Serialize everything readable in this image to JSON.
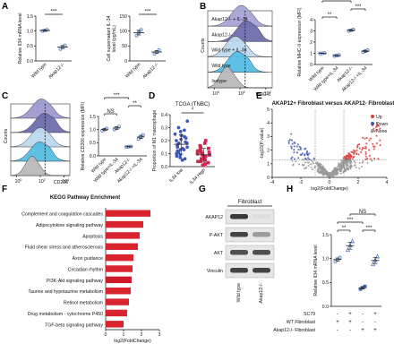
{
  "panel_labels": [
    "A",
    "B",
    "C",
    "D",
    "E",
    "F",
    "G",
    "H"
  ],
  "chart_data": [
    {
      "panel": "A1",
      "type": "scatter",
      "ylabel": "Relative Il34 mRNA level",
      "categories": [
        "Wild type",
        "Akap12-/-"
      ],
      "ylim": [
        0.0,
        1.5
      ],
      "yticks": [
        "0.0",
        "0.5",
        "1.0",
        "1.5"
      ],
      "points": [
        [
          1.0,
          1.02,
          1.04
        ],
        [
          0.4,
          0.47,
          0.52
        ]
      ],
      "color": "#3f6bb5",
      "significance": "***"
    },
    {
      "panel": "A2",
      "type": "scatter",
      "ylabel": "Cell supernatant IL-34 level (pg/mL)",
      "categories": [
        "Wild type",
        "Akap12-/-"
      ],
      "ylim": [
        0,
        150
      ],
      "yticks": [
        "0",
        "50",
        "100",
        "150"
      ],
      "points": [
        [
          85,
          95,
          104
        ],
        [
          24,
          30,
          36
        ]
      ],
      "color": "#3f6bb5",
      "significance": "***"
    },
    {
      "panel": "B1",
      "type": "area",
      "xlabel": "MHC-II",
      "ylabel": "Counts",
      "xticks": [
        "10^0",
        "10^2",
        "10^4"
      ],
      "tracks": [
        {
          "name": "Akap12-/- + IL-34",
          "color": "#a7a4d6",
          "peak": 0.52,
          "width": 0.15
        },
        {
          "name": "Akap12-/-",
          "color": "#6f6dad",
          "peak": 0.6,
          "width": 0.15
        },
        {
          "name": "Wild type + IL-34",
          "color": "#bdd8ee",
          "peak": 0.43,
          "width": 0.15
        },
        {
          "name": "Wild type",
          "color": "#54bde4",
          "peak": 0.46,
          "width": 0.15
        },
        {
          "name": "Isotype",
          "color": "#b9b9b9",
          "peak": 0.3,
          "width": 0.11
        }
      ]
    },
    {
      "panel": "B2",
      "type": "scatter",
      "ylabel": "Relative MHC-II expression (MFI)",
      "categories": [
        "Wild type",
        "Wild type+IL-34",
        "Akap12-/-",
        "Akap12-/-+IL-34"
      ],
      "ylim": [
        0,
        4
      ],
      "yticks": [
        "0",
        "1",
        "2",
        "3",
        "4"
      ],
      "points": [
        [
          0.98,
          1.0,
          1.02
        ],
        [
          0.76,
          0.8,
          0.84
        ],
        [
          3.0,
          3.05,
          3.12
        ],
        [
          1.1,
          1.2,
          1.28
        ]
      ],
      "color": "#3f6bb5",
      "brackets": [
        {
          "from": 0,
          "to": 1,
          "label": "**",
          "level": 0
        },
        {
          "from": 2,
          "to": 3,
          "label": "***",
          "level": 1
        },
        {
          "from": 0,
          "to": 2,
          "label": "***",
          "level": 2
        }
      ]
    },
    {
      "panel": "C1",
      "type": "area",
      "xlabel": "CD206",
      "ylabel": "Counts",
      "xticks": [
        "10^0",
        "10^2",
        "10^4"
      ],
      "tracks": [
        {
          "name": "Akap12-/- + IL-34",
          "color": "#9d9ad0",
          "peak": 0.52,
          "width": 0.16
        },
        {
          "name": "Akap12-/-",
          "color": "#6f6dad",
          "peak": 0.57,
          "width": 0.16
        },
        {
          "name": "Wild type + IL-34",
          "color": "#bdd8ee",
          "peak": 0.5,
          "width": 0.16
        },
        {
          "name": "Wild type",
          "color": "#54bde4",
          "peak": 0.49,
          "width": 0.16
        },
        {
          "name": "Isotype",
          "color": "#b9b9b9",
          "peak": 0.36,
          "width": 0.11
        }
      ]
    },
    {
      "panel": "C2",
      "type": "scatter",
      "ylabel": "Relative CD206 expression (MFI)",
      "categories": [
        "Wild type",
        "Wild type+IL-34",
        "Akap12-/-",
        "Akap12-/-+IL-34"
      ],
      "ylim": [
        0.0,
        1.5
      ],
      "yticks": [
        "0.0",
        "0.5",
        "1.0",
        "1.5"
      ],
      "points": [
        [
          0.96,
          1.0,
          1.04
        ],
        [
          1.0,
          1.06,
          1.12
        ],
        [
          0.34,
          0.35,
          0.36
        ],
        [
          0.64,
          0.72,
          0.8
        ]
      ],
      "color": "#3f6bb5",
      "brackets": [
        {
          "from": 0,
          "to": 1,
          "label": "NS",
          "level": 0
        },
        {
          "from": 2,
          "to": 3,
          "label": "**",
          "level": 1
        },
        {
          "from": 0,
          "to": 2,
          "label": "***",
          "level": 2
        }
      ]
    },
    {
      "panel": "D",
      "type": "scatter",
      "title": "TCGA (TNBC)",
      "ylabel": "Proportion of M1 macrophage",
      "categories": [
        "IL34 low",
        "IL34 High"
      ],
      "ylim": [
        0.0,
        0.4
      ],
      "yticks": [
        "0.0",
        "0.1",
        "0.2",
        "0.3",
        "0.4"
      ],
      "points": [
        [
          0.25,
          0.22,
          0.18,
          0.15,
          0.13,
          0.2,
          0.28,
          0.1,
          0.08,
          0.05,
          0.12,
          0.17,
          0.23,
          0.3,
          0.35,
          0.14,
          0.19,
          0.11,
          0.16,
          0.21,
          0.27,
          0.09,
          0.06,
          0.13,
          0.18,
          0.24,
          0.07,
          0.15
        ],
        [
          0.1,
          0.06,
          0.04,
          0.12,
          0.02,
          0.08,
          0.15,
          0.18,
          0.05,
          0.03,
          0.09,
          0.11,
          0.14,
          0.2,
          0.07,
          0.01,
          0.13,
          0.06,
          0.1,
          0.16,
          0.04,
          0.09,
          0.12,
          0.08,
          0.02,
          0.11
        ]
      ],
      "colors": [
        "#3f57b5",
        "#d1264e"
      ],
      "significance": "*"
    },
    {
      "panel": "E",
      "type": "scatter",
      "title": "AKAP12+ Fibroblast versus AKAP12- Fibroblast",
      "xlabel": "log2(FoldChange)",
      "ylabel": "-log10(P value)",
      "xlim": [
        -4,
        4
      ],
      "ylim": [
        0,
        5
      ],
      "xticks": [
        "-4",
        "-2",
        "0",
        "2",
        "4"
      ],
      "yticks": [
        "0",
        "1",
        "2",
        "3",
        "4",
        "5"
      ],
      "legend": [
        {
          "label": "Up",
          "color": "#e23b3b"
        },
        {
          "label": "Down",
          "color": "#3f57b5"
        },
        {
          "label": "None",
          "color": "#999999"
        }
      ]
    },
    {
      "panel": "F",
      "type": "bar",
      "title": "KEGG Pathway Enrichment",
      "xlabel": "log2(FoldChange)",
      "xlim": [
        0,
        3
      ],
      "xticks": [
        "0",
        "1",
        "2",
        "3"
      ],
      "categories": [
        "Complement and coagulation cascades",
        "Adipocytokine signaling pathway",
        "Apoptosis",
        "Fluid shear stress and atherosclerosis",
        "Axon guidance",
        "Circadian rhythm",
        "PI3K-Akt signaling pathway",
        "Taurine and hypotaurine metabolism",
        "Retinol metabolism",
        "Drug metabolism - cytochrome P450",
        "TGF-beta signaling pathway"
      ],
      "values": [
        2.5,
        2.1,
        1.9,
        1.8,
        1.55,
        1.5,
        1.45,
        1.4,
        1.3,
        1.2,
        1.0
      ],
      "highlight_index": 6,
      "bar_color": "#d9232e",
      "highlight_color": "#cc1a2a"
    },
    {
      "panel": "G",
      "type": "table",
      "header": "Fibroblast",
      "rows": [
        "AKAP12",
        "P-AKT",
        "AKT",
        "Vinculin"
      ],
      "columns": [
        "Wild type",
        "Akap12-/-"
      ],
      "band_intensity": [
        [
          0.9,
          0.15
        ],
        [
          0.85,
          0.45
        ],
        [
          0.8,
          0.8
        ],
        [
          0.85,
          0.85
        ]
      ]
    },
    {
      "panel": "H",
      "type": "scatter",
      "ylabel": "Relative Il34 mRNA level",
      "ylim": [
        0.0,
        1.5
      ],
      "yticks": [
        "0.0",
        "0.5",
        "1.0",
        "1.5"
      ],
      "points": [
        [
          0.94,
          0.98,
          1.02
        ],
        [
          1.18,
          1.27,
          1.36
        ],
        [
          0.36,
          0.39,
          0.42
        ],
        [
          0.88,
          0.96,
          1.04
        ]
      ],
      "color": "#3f6bb5",
      "matrix_rows": [
        "SC79",
        "WT Fibroblast",
        "Akap12-/- Fibroblast"
      ],
      "matrix": [
        [
          "-",
          "+",
          "-",
          "+"
        ],
        [
          "+",
          "+",
          "-",
          "-"
        ],
        [
          "-",
          "-",
          "+",
          "+"
        ]
      ],
      "brackets": [
        {
          "from": 0,
          "to": 1,
          "label": "**",
          "level": 0
        },
        {
          "from": 2,
          "to": 3,
          "label": "***",
          "level": 0
        },
        {
          "from": 0,
          "to": 2,
          "label": "***",
          "level": 1
        },
        {
          "from": 1,
          "to": 3,
          "label": "NS",
          "level": 2
        }
      ]
    }
  ]
}
